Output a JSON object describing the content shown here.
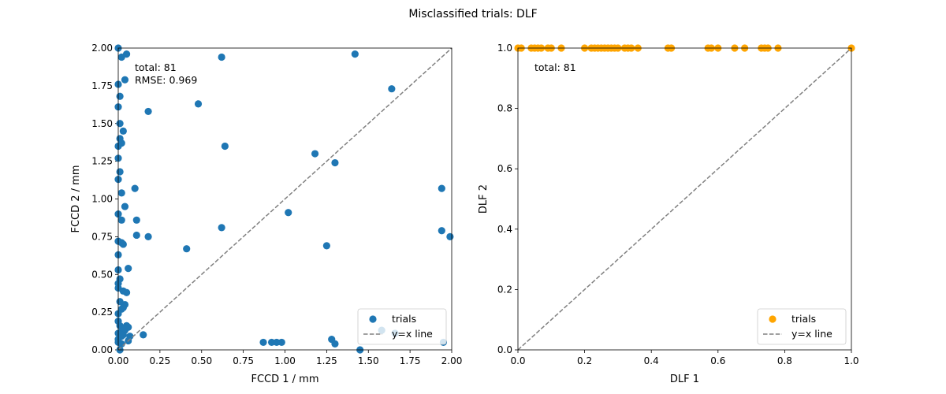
{
  "figure": {
    "title": "Misclassified trials: DLF"
  },
  "chart_data": [
    {
      "type": "scatter",
      "xlabel": "FCCD 1 / mm",
      "ylabel": "FCCD 2 / mm",
      "xlim": [
        0,
        2
      ],
      "ylim": [
        0,
        2
      ],
      "xticks": [
        "0.00",
        "0.25",
        "0.50",
        "0.75",
        "1.00",
        "1.25",
        "1.50",
        "1.75",
        "2.00"
      ],
      "yticks": [
        "0.00",
        "0.25",
        "0.50",
        "0.75",
        "1.00",
        "1.25",
        "1.50",
        "1.75",
        "2.00"
      ],
      "annotation": [
        "total: 81",
        "RMSE: 0.969"
      ],
      "legend": {
        "position": "lower right",
        "entries": [
          "trials",
          "y=x line"
        ]
      },
      "grid": false,
      "colors": {
        "points": "#1f77b4",
        "line": "#808080"
      },
      "series": [
        {
          "name": "trials",
          "points": [
            [
              0.0,
              2.0
            ],
            [
              0.02,
              1.94
            ],
            [
              0.05,
              1.96
            ],
            [
              0.04,
              1.79
            ],
            [
              0.62,
              1.94
            ],
            [
              1.42,
              1.96
            ],
            [
              1.64,
              1.73
            ],
            [
              0.0,
              1.76
            ],
            [
              0.01,
              1.68
            ],
            [
              0.0,
              1.61
            ],
            [
              0.48,
              1.63
            ],
            [
              0.18,
              1.58
            ],
            [
              0.03,
              1.45
            ],
            [
              0.01,
              1.4
            ],
            [
              0.02,
              1.37
            ],
            [
              0.0,
              1.35
            ],
            [
              0.64,
              1.35
            ],
            [
              1.18,
              1.3
            ],
            [
              1.3,
              1.24
            ],
            [
              0.0,
              1.27
            ],
            [
              0.01,
              1.18
            ],
            [
              0.02,
              1.04
            ],
            [
              0.1,
              1.07
            ],
            [
              1.94,
              1.07
            ],
            [
              0.04,
              0.95
            ],
            [
              0.0,
              0.9
            ],
            [
              1.02,
              0.91
            ],
            [
              0.11,
              0.86
            ],
            [
              0.62,
              0.81
            ],
            [
              1.94,
              0.79
            ],
            [
              1.99,
              0.75
            ],
            [
              0.11,
              0.76
            ],
            [
              0.18,
              0.75
            ],
            [
              0.0,
              0.72
            ],
            [
              0.02,
              0.71
            ],
            [
              0.03,
              0.7
            ],
            [
              1.25,
              0.69
            ],
            [
              0.41,
              0.67
            ],
            [
              0.0,
              0.63
            ],
            [
              0.06,
              0.54
            ],
            [
              0.01,
              0.47
            ],
            [
              0.0,
              0.44
            ],
            [
              0.0,
              0.41
            ],
            [
              0.03,
              0.39
            ],
            [
              0.05,
              0.38
            ],
            [
              0.04,
              0.3
            ],
            [
              0.03,
              0.28
            ],
            [
              0.02,
              0.27
            ],
            [
              0.0,
              0.24
            ],
            [
              0.01,
              0.16
            ],
            [
              0.05,
              0.16
            ],
            [
              0.06,
              0.15
            ],
            [
              0.04,
              0.13
            ],
            [
              0.02,
              0.12
            ],
            [
              0.0,
              0.11
            ],
            [
              0.03,
              0.1
            ],
            [
              0.07,
              0.09
            ],
            [
              0.15,
              0.1
            ],
            [
              0.06,
              0.06
            ],
            [
              0.0,
              0.05
            ],
            [
              0.02,
              0.04
            ],
            [
              0.01,
              0.0
            ],
            [
              0.87,
              0.05
            ],
            [
              0.92,
              0.05
            ],
            [
              0.95,
              0.05
            ],
            [
              0.98,
              0.05
            ],
            [
              1.28,
              0.07
            ],
            [
              1.3,
              0.04
            ],
            [
              1.45,
              0.0
            ],
            [
              1.58,
              0.13
            ],
            [
              1.66,
              0.11
            ],
            [
              1.95,
              0.05
            ],
            [
              0.0,
              0.07
            ],
            [
              0.02,
              0.09
            ],
            [
              0.04,
              0.14
            ],
            [
              0.0,
              0.19
            ],
            [
              0.01,
              0.32
            ],
            [
              0.0,
              0.53
            ],
            [
              0.02,
              0.86
            ],
            [
              0.0,
              1.13
            ],
            [
              0.01,
              1.5
            ]
          ]
        }
      ]
    },
    {
      "type": "scatter",
      "xlabel": "DLF 1",
      "ylabel": "DLF 2",
      "xlim": [
        0,
        1
      ],
      "ylim": [
        0,
        1
      ],
      "xticks": [
        "0.0",
        "0.2",
        "0.4",
        "0.6",
        "0.8",
        "1.0"
      ],
      "yticks": [
        "0.0",
        "0.2",
        "0.4",
        "0.6",
        "0.8",
        "1.0"
      ],
      "annotation": [
        "total: 81"
      ],
      "legend": {
        "position": "lower right",
        "entries": [
          "trials",
          "y=x line"
        ]
      },
      "grid": false,
      "colors": {
        "points": "#ffa500",
        "line": "#808080"
      },
      "series": [
        {
          "name": "trials",
          "points": [
            [
              0.0,
              1.0
            ],
            [
              0.01,
              1.0
            ],
            [
              0.04,
              1.0
            ],
            [
              0.05,
              1.0
            ],
            [
              0.06,
              1.0
            ],
            [
              0.07,
              1.0
            ],
            [
              0.09,
              1.0
            ],
            [
              0.1,
              1.0
            ],
            [
              0.13,
              1.0
            ],
            [
              0.2,
              1.0
            ],
            [
              0.22,
              1.0
            ],
            [
              0.23,
              1.0
            ],
            [
              0.24,
              1.0
            ],
            [
              0.25,
              1.0
            ],
            [
              0.26,
              1.0
            ],
            [
              0.27,
              1.0
            ],
            [
              0.28,
              1.0
            ],
            [
              0.29,
              1.0
            ],
            [
              0.3,
              1.0
            ],
            [
              0.32,
              1.0
            ],
            [
              0.33,
              1.0
            ],
            [
              0.34,
              1.0
            ],
            [
              0.36,
              1.0
            ],
            [
              0.45,
              1.0
            ],
            [
              0.46,
              1.0
            ],
            [
              0.57,
              1.0
            ],
            [
              0.58,
              1.0
            ],
            [
              0.6,
              1.0
            ],
            [
              0.65,
              1.0
            ],
            [
              0.68,
              1.0
            ],
            [
              0.73,
              1.0
            ],
            [
              0.74,
              1.0
            ],
            [
              0.75,
              1.0
            ],
            [
              0.78,
              1.0
            ],
            [
              1.0,
              1.0
            ]
          ]
        }
      ]
    }
  ]
}
